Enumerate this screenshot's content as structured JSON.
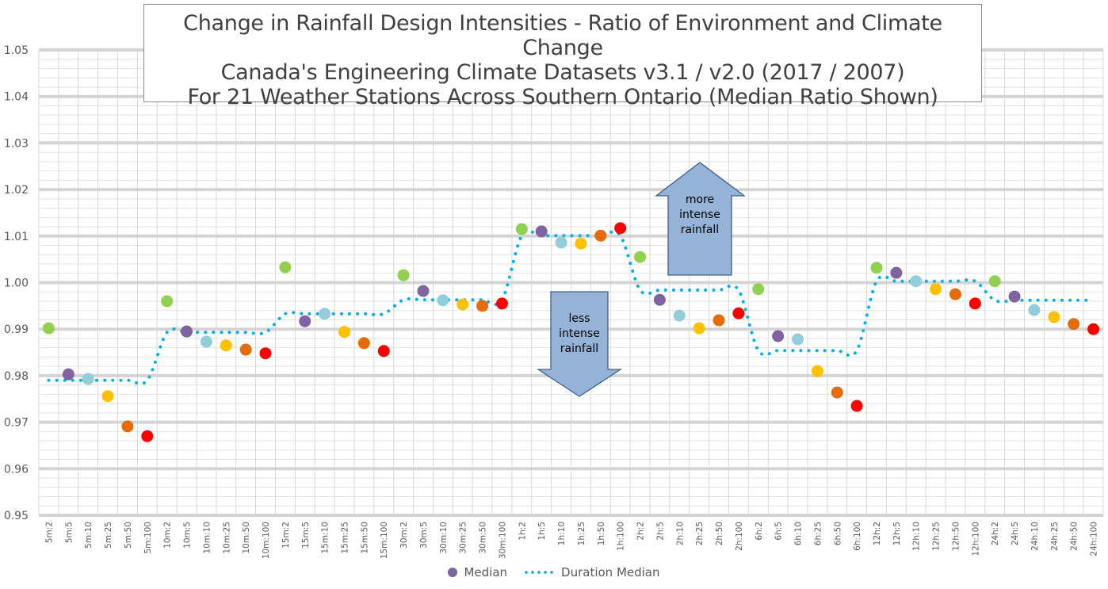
{
  "chart_data": {
    "type": "scatter",
    "title_lines": [
      "Change in Rainfall Design Intensities - Ratio of Environment and Climate Change",
      "Canada's Engineering Climate Datasets v3.1 / v2.0 (2017 / 2007)",
      "For 21 Weather Stations Across Southern Ontario (Median Ratio Shown)"
    ],
    "xlabel": "",
    "ylabel": "",
    "ylim": [
      0.95,
      1.05
    ],
    "yticks": [
      "0.95",
      "0.96",
      "0.97",
      "0.98",
      "0.99",
      "1.00",
      "1.01",
      "1.02",
      "1.03",
      "1.04",
      "1.05"
    ],
    "grid": true,
    "legend_position": "bottom",
    "categories": [
      "5m:2",
      "5m:5",
      "5m:10",
      "5m:25",
      "5m:50",
      "5m:100",
      "10m:2",
      "10m:5",
      "10m:10",
      "10m:25",
      "10m:50",
      "10m:100",
      "15m:2",
      "15m:5",
      "15m:10",
      "15m:25",
      "15m:50",
      "15m:100",
      "30m:2",
      "30m:5",
      "30m:10",
      "30m:25",
      "30m:50",
      "30m:100",
      "1h:2",
      "1h:5",
      "1h:10",
      "1h:25",
      "1h:50",
      "1h:100",
      "2h:2",
      "2h:5",
      "2h:10",
      "2h:25",
      "2h:50",
      "2h:100",
      "6h:2",
      "6h:5",
      "6h:10",
      "6h:25",
      "6h:50",
      "6h:100",
      "12h:2",
      "12h:5",
      "12h:10",
      "12h:25",
      "12h:50",
      "12h:100",
      "24h:2",
      "24h:5",
      "24h:10",
      "24h:25",
      "24h:50",
      "24h:100"
    ],
    "return_period_colors": {
      "2": "#92D050",
      "5": "#8064A2",
      "10": "#92CDDC",
      "25": "#FFC000",
      "50": "#E46C0A",
      "100": "#FF0000"
    },
    "series": [
      {
        "name": "Median",
        "type": "scatter",
        "legend_color": "#8064A2",
        "values": [
          0.9902,
          0.9803,
          0.9793,
          0.9756,
          0.9691,
          0.967,
          0.996,
          0.9895,
          0.9873,
          0.9865,
          0.9856,
          0.9848,
          1.0033,
          0.9917,
          0.9933,
          0.9894,
          0.987,
          0.9853,
          1.0016,
          0.9982,
          0.9962,
          0.9953,
          0.995,
          0.9955,
          1.0115,
          1.011,
          1.0086,
          1.0084,
          1.0101,
          1.0117,
          1.0055,
          0.9963,
          0.9929,
          0.9902,
          0.9919,
          0.9934,
          0.9986,
          0.9885,
          0.9878,
          0.981,
          0.9764,
          0.9735,
          1.0032,
          1.0021,
          1.0003,
          0.9986,
          0.9975,
          0.9955,
          1.0003,
          0.997,
          0.9941,
          0.9926,
          0.9911,
          0.99
        ]
      },
      {
        "name": "Duration Median",
        "type": "line",
        "style": "dotted",
        "color": "#00B0F0",
        "values": [
          0.979,
          0.979,
          0.979,
          0.979,
          0.979,
          0.979,
          0.9893,
          0.9893,
          0.9893,
          0.9893,
          0.9893,
          0.9893,
          0.9933,
          0.9933,
          0.9933,
          0.9933,
          0.9933,
          0.9933,
          0.9963,
          0.9963,
          0.9963,
          0.9963,
          0.9963,
          0.9963,
          1.0101,
          1.0101,
          1.0101,
          1.0101,
          1.0101,
          1.0101,
          0.9984,
          0.9984,
          0.9984,
          0.9984,
          0.9984,
          0.9984,
          0.9854,
          0.9854,
          0.9854,
          0.9854,
          0.9854,
          0.9854,
          1.0003,
          1.0003,
          1.0003,
          1.0003,
          1.0003,
          1.0003,
          0.9962,
          0.9962,
          0.9962,
          0.9962,
          0.9962,
          0.9962
        ]
      }
    ],
    "annotations": [
      {
        "text_lines": [
          "more",
          "intense",
          "rainfall"
        ],
        "direction": "up",
        "color": "#95B3D7"
      },
      {
        "text_lines": [
          "less",
          "intense",
          "rainfall"
        ],
        "direction": "down",
        "color": "#95B3D7"
      }
    ]
  }
}
